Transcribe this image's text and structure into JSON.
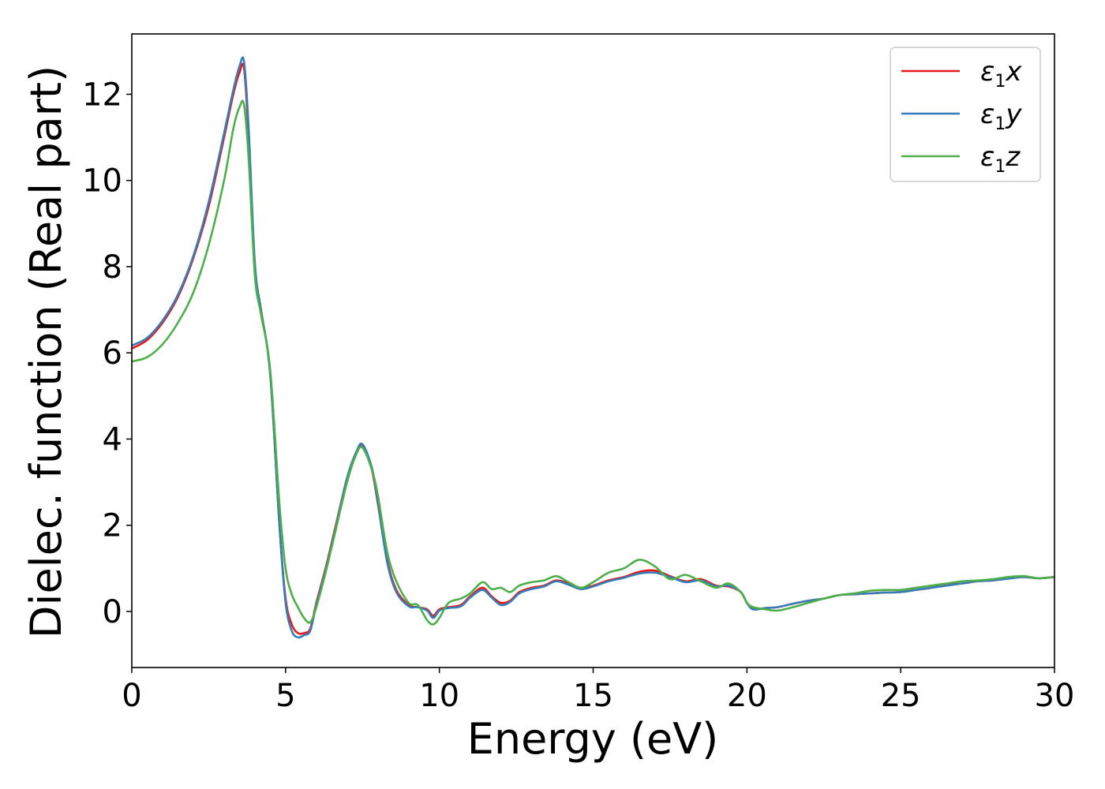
{
  "chart_data": {
    "type": "line",
    "xlabel": "Energy (eV)",
    "ylabel": "Dielec. function (Real part)",
    "xlim": [
      0,
      30
    ],
    "ylim": [
      -1.3,
      13.4
    ],
    "xticks": [
      0,
      5,
      10,
      15,
      20,
      25,
      30
    ],
    "yticks": [
      0,
      2,
      4,
      6,
      8,
      10,
      12
    ],
    "grid": false,
    "legend_position": "top-right",
    "series": [
      {
        "name": "ε1x",
        "legend_base": "ε",
        "legend_sub": "1",
        "legend_suffix": "x",
        "color": "#e41a1c",
        "x": [
          0,
          0.5,
          1,
          1.5,
          2,
          2.5,
          3,
          3.3,
          3.5,
          3.65,
          3.8,
          4.0,
          4.2,
          4.5,
          4.8,
          5.0,
          5.2,
          5.4,
          5.6,
          5.8,
          6.0,
          6.3,
          6.6,
          7.0,
          7.3,
          7.5,
          7.8,
          8.0,
          8.3,
          8.6,
          9.0,
          9.3,
          9.6,
          9.8,
          10.0,
          10.3,
          10.7,
          11.0,
          11.4,
          11.7,
          12.0,
          12.3,
          12.6,
          13.0,
          13.4,
          13.8,
          14.2,
          14.6,
          15.0,
          15.5,
          16.0,
          16.5,
          17.0,
          17.5,
          18.0,
          18.5,
          19.0,
          19.4,
          19.8,
          20.0,
          20.2,
          20.6,
          21.0,
          21.5,
          22.0,
          22.5,
          23.0,
          23.5,
          24.0,
          24.5,
          25.0,
          25.5,
          26.0,
          26.5,
          27.0,
          27.5,
          28.0,
          28.5,
          29.0,
          29.5,
          30.0
        ],
        "values": [
          6.1,
          6.3,
          6.7,
          7.3,
          8.2,
          9.4,
          11.0,
          12.0,
          12.5,
          12.6,
          11.0,
          8.0,
          7.0,
          5.5,
          2.0,
          0.3,
          -0.3,
          -0.5,
          -0.5,
          -0.4,
          0.2,
          1.0,
          1.9,
          3.1,
          3.7,
          3.85,
          3.3,
          2.5,
          1.2,
          0.5,
          0.15,
          0.1,
          0.05,
          -0.1,
          0.05,
          0.1,
          0.15,
          0.35,
          0.55,
          0.35,
          0.2,
          0.25,
          0.45,
          0.55,
          0.6,
          0.72,
          0.65,
          0.55,
          0.6,
          0.72,
          0.8,
          0.92,
          0.95,
          0.82,
          0.7,
          0.75,
          0.6,
          0.58,
          0.45,
          0.2,
          0.05,
          0.08,
          0.1,
          0.18,
          0.25,
          0.3,
          0.38,
          0.4,
          0.42,
          0.44,
          0.45,
          0.5,
          0.55,
          0.62,
          0.65,
          0.7,
          0.72,
          0.77,
          0.8,
          0.77,
          0.8
        ]
      },
      {
        "name": "ε1y",
        "legend_base": "ε",
        "legend_sub": "1",
        "legend_suffix": "y",
        "color": "#377eb8",
        "x": [
          0,
          0.5,
          1,
          1.5,
          2,
          2.5,
          3,
          3.3,
          3.5,
          3.65,
          3.8,
          4.0,
          4.2,
          4.5,
          4.8,
          5.0,
          5.2,
          5.4,
          5.6,
          5.8,
          6.0,
          6.3,
          6.6,
          7.0,
          7.3,
          7.5,
          7.8,
          8.0,
          8.3,
          8.6,
          9.0,
          9.3,
          9.6,
          9.8,
          10.0,
          10.3,
          10.7,
          11.0,
          11.4,
          11.7,
          12.0,
          12.3,
          12.6,
          13.0,
          13.4,
          13.8,
          14.2,
          14.6,
          15.0,
          15.5,
          16.0,
          16.5,
          17.0,
          17.5,
          18.0,
          18.5,
          19.0,
          19.4,
          19.8,
          20.0,
          20.2,
          20.6,
          21.0,
          21.5,
          22.0,
          22.5,
          23.0,
          23.5,
          24.0,
          24.5,
          25.0,
          25.5,
          26.0,
          26.5,
          27.0,
          27.5,
          28.0,
          28.5,
          29.0,
          29.5,
          30.0
        ],
        "values": [
          6.17,
          6.35,
          6.75,
          7.35,
          8.25,
          9.5,
          11.1,
          12.1,
          12.65,
          12.75,
          11.2,
          8.1,
          7.0,
          5.5,
          2.0,
          0.2,
          -0.45,
          -0.6,
          -0.55,
          -0.45,
          0.15,
          0.95,
          1.85,
          3.1,
          3.7,
          3.88,
          3.35,
          2.55,
          1.15,
          0.45,
          0.12,
          0.1,
          0.02,
          -0.15,
          0.02,
          0.08,
          0.12,
          0.32,
          0.5,
          0.32,
          0.15,
          0.22,
          0.42,
          0.52,
          0.58,
          0.7,
          0.62,
          0.52,
          0.58,
          0.7,
          0.78,
          0.88,
          0.9,
          0.8,
          0.68,
          0.72,
          0.58,
          0.6,
          0.45,
          0.2,
          0.05,
          0.08,
          0.1,
          0.18,
          0.25,
          0.3,
          0.38,
          0.4,
          0.42,
          0.44,
          0.45,
          0.5,
          0.55,
          0.6,
          0.65,
          0.7,
          0.72,
          0.76,
          0.8,
          0.77,
          0.8
        ]
      },
      {
        "name": "ε1z",
        "legend_base": "ε",
        "legend_sub": "1",
        "legend_suffix": "z",
        "color": "#4daf4a",
        "x": [
          0,
          0.5,
          1,
          1.5,
          2,
          2.5,
          3,
          3.3,
          3.5,
          3.65,
          3.8,
          4.0,
          4.2,
          4.5,
          4.8,
          5.0,
          5.2,
          5.4,
          5.6,
          5.8,
          6.0,
          6.3,
          6.6,
          7.0,
          7.3,
          7.5,
          7.8,
          8.0,
          8.3,
          8.6,
          9.0,
          9.3,
          9.6,
          9.8,
          10.0,
          10.3,
          10.7,
          11.0,
          11.4,
          11.7,
          12.0,
          12.3,
          12.6,
          13.0,
          13.4,
          13.8,
          14.2,
          14.6,
          15.0,
          15.5,
          16.0,
          16.5,
          17.0,
          17.5,
          18.0,
          18.5,
          19.0,
          19.4,
          19.8,
          20.0,
          20.2,
          20.6,
          21.0,
          21.5,
          22.0,
          22.5,
          23.0,
          23.5,
          24.0,
          24.5,
          25.0,
          25.5,
          26.0,
          26.5,
          27.0,
          27.5,
          28.0,
          28.5,
          29.0,
          29.5,
          30.0
        ],
        "values": [
          5.8,
          5.9,
          6.2,
          6.7,
          7.4,
          8.5,
          10.0,
          11.2,
          11.7,
          11.75,
          10.5,
          7.8,
          6.9,
          5.6,
          2.5,
          1.0,
          0.4,
          0.1,
          -0.15,
          -0.25,
          0.1,
          0.9,
          1.8,
          3.0,
          3.65,
          3.8,
          3.3,
          2.7,
          1.4,
          0.7,
          0.2,
          0.15,
          -0.2,
          -0.3,
          -0.15,
          0.2,
          0.3,
          0.42,
          0.68,
          0.52,
          0.55,
          0.45,
          0.6,
          0.68,
          0.72,
          0.82,
          0.68,
          0.55,
          0.68,
          0.9,
          1.0,
          1.2,
          1.05,
          0.75,
          0.85,
          0.7,
          0.55,
          0.65,
          0.45,
          0.2,
          0.1,
          0.05,
          0.02,
          0.1,
          0.2,
          0.3,
          0.38,
          0.42,
          0.48,
          0.5,
          0.5,
          0.55,
          0.6,
          0.65,
          0.7,
          0.72,
          0.75,
          0.8,
          0.82,
          0.77,
          0.8
        ]
      }
    ]
  }
}
